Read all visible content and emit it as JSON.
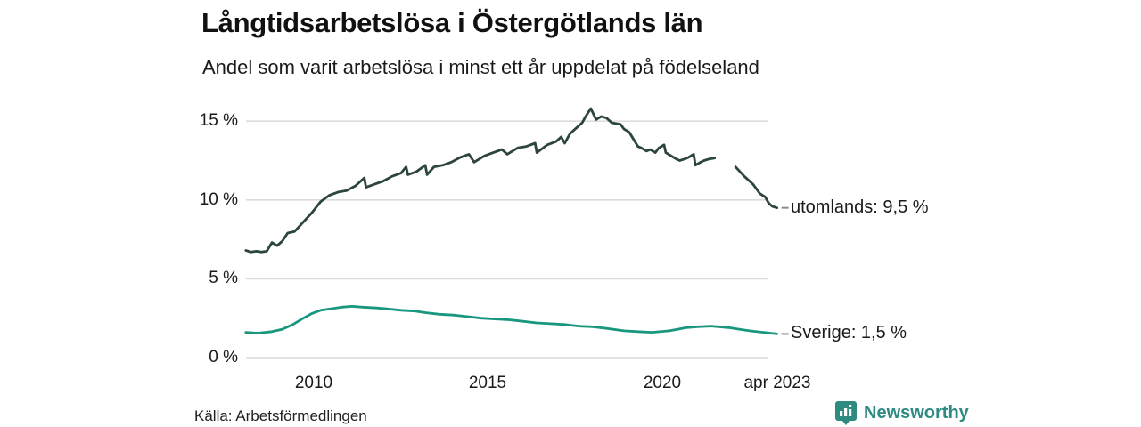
{
  "header": {
    "title": "Långtidsarbetslösa i Östergötlands län",
    "subtitle": "Andel som varit arbetslösa i minst ett år uppdelat på födelseland"
  },
  "footer": {
    "source": "Källa: Arbetsförmedlingen",
    "brand_name": "Newsworthy",
    "brand_icon": "bar-chart-speech-bubble-icon"
  },
  "colors": {
    "series_utomlands": "#2c453e",
    "series_sverige": "#19977e",
    "grid": "#dcdcdc",
    "label_dash": "#8a8a8a",
    "text": "#1a1a1a",
    "brand": "#2e8b81"
  },
  "chart_data": {
    "type": "line",
    "title": "Långtidsarbetslösa i Östergötlands län",
    "subtitle": "Andel som varit arbetslösa i minst ett år uppdelat på födelseland",
    "unit": "%",
    "grid": true,
    "legend_position": "end-of-line-labels",
    "ylim": [
      0,
      16.5
    ],
    "xlim": [
      2007.9,
      2023.45
    ],
    "y_ticks": [
      {
        "value": 0,
        "label": "0 %"
      },
      {
        "value": 5,
        "label": "5 %"
      },
      {
        "value": 10,
        "label": "10 %"
      },
      {
        "value": 15,
        "label": "15 %"
      }
    ],
    "x_ticks": [
      {
        "value": 2010,
        "label": "2010"
      },
      {
        "value": 2015,
        "label": "2015"
      },
      {
        "value": 2020,
        "label": "2020"
      },
      {
        "value": 2023.29,
        "label": "apr 2023"
      }
    ],
    "series": [
      {
        "name": "utomlands",
        "end_label": "utomlands: 9,5 %",
        "last_value": "9,5 %",
        "color": "#2c453e",
        "segments": [
          [
            [
              2008.05,
              6.8
            ],
            [
              2008.2,
              6.7
            ],
            [
              2008.35,
              6.75
            ],
            [
              2008.5,
              6.7
            ],
            [
              2008.65,
              6.75
            ],
            [
              2008.8,
              7.3
            ],
            [
              2008.95,
              7.1
            ],
            [
              2009.1,
              7.4
            ],
            [
              2009.25,
              7.9
            ],
            [
              2009.45,
              8.0
            ],
            [
              2009.7,
              8.6
            ],
            [
              2009.95,
              9.2
            ],
            [
              2010.2,
              9.9
            ],
            [
              2010.45,
              10.3
            ],
            [
              2010.7,
              10.5
            ],
            [
              2010.95,
              10.6
            ],
            [
              2011.2,
              10.9
            ],
            [
              2011.45,
              11.4
            ],
            [
              2011.5,
              10.8
            ],
            [
              2011.75,
              11.0
            ],
            [
              2012.0,
              11.2
            ],
            [
              2012.25,
              11.5
            ],
            [
              2012.5,
              11.7
            ],
            [
              2012.65,
              12.1
            ],
            [
              2012.7,
              11.6
            ],
            [
              2012.95,
              11.8
            ],
            [
              2013.2,
              12.2
            ],
            [
              2013.25,
              11.6
            ],
            [
              2013.45,
              12.1
            ],
            [
              2013.7,
              12.2
            ],
            [
              2013.95,
              12.4
            ],
            [
              2014.2,
              12.7
            ],
            [
              2014.45,
              12.9
            ],
            [
              2014.6,
              12.4
            ],
            [
              2014.9,
              12.8
            ],
            [
              2015.15,
              13.0
            ],
            [
              2015.4,
              13.2
            ],
            [
              2015.55,
              12.9
            ],
            [
              2015.85,
              13.3
            ],
            [
              2016.1,
              13.4
            ],
            [
              2016.35,
              13.6
            ],
            [
              2016.4,
              13.0
            ],
            [
              2016.7,
              13.5
            ],
            [
              2016.95,
              13.7
            ],
            [
              2017.1,
              14.0
            ],
            [
              2017.2,
              13.6
            ],
            [
              2017.35,
              14.2
            ],
            [
              2017.55,
              14.6
            ],
            [
              2017.7,
              14.9
            ],
            [
              2017.8,
              15.3
            ],
            [
              2017.95,
              15.8
            ],
            [
              2018.1,
              15.1
            ],
            [
              2018.25,
              15.3
            ],
            [
              2018.4,
              15.2
            ],
            [
              2018.55,
              14.9
            ],
            [
              2018.8,
              14.8
            ],
            [
              2018.9,
              14.5
            ],
            [
              2019.05,
              14.3
            ],
            [
              2019.3,
              13.4
            ],
            [
              2019.4,
              13.3
            ],
            [
              2019.55,
              13.1
            ],
            [
              2019.65,
              13.2
            ],
            [
              2019.8,
              13.0
            ],
            [
              2019.9,
              13.3
            ],
            [
              2020.05,
              13.5
            ],
            [
              2020.1,
              13.0
            ],
            [
              2020.25,
              12.8
            ],
            [
              2020.4,
              12.6
            ],
            [
              2020.5,
              12.5
            ],
            [
              2020.65,
              12.6
            ],
            [
              2020.75,
              12.7
            ],
            [
              2020.9,
              12.9
            ],
            [
              2020.95,
              12.2
            ],
            [
              2021.1,
              12.4
            ],
            [
              2021.2,
              12.5
            ],
            [
              2021.35,
              12.6
            ],
            [
              2021.5,
              12.65
            ]
          ],
          [
            [
              2022.1,
              12.1
            ],
            [
              2022.35,
              11.5
            ],
            [
              2022.6,
              11.0
            ],
            [
              2022.8,
              10.4
            ],
            [
              2022.95,
              10.2
            ],
            [
              2023.05,
              9.8
            ],
            [
              2023.15,
              9.6
            ],
            [
              2023.29,
              9.5
            ]
          ]
        ]
      },
      {
        "name": "Sverige",
        "end_label": "Sverige: 1,5 %",
        "last_value": "1,5 %",
        "color": "#19977e",
        "segments": [
          [
            [
              2008.05,
              1.6
            ],
            [
              2008.4,
              1.55
            ],
            [
              2008.8,
              1.65
            ],
            [
              2009.1,
              1.8
            ],
            [
              2009.4,
              2.1
            ],
            [
              2009.7,
              2.5
            ],
            [
              2009.95,
              2.8
            ],
            [
              2010.2,
              3.0
            ],
            [
              2010.5,
              3.1
            ],
            [
              2010.8,
              3.2
            ],
            [
              2011.1,
              3.25
            ],
            [
              2011.4,
              3.2
            ],
            [
              2011.8,
              3.15
            ],
            [
              2012.1,
              3.1
            ],
            [
              2012.5,
              3.0
            ],
            [
              2012.9,
              2.95
            ],
            [
              2013.2,
              2.85
            ],
            [
              2013.6,
              2.75
            ],
            [
              2014.0,
              2.7
            ],
            [
              2014.4,
              2.6
            ],
            [
              2014.8,
              2.5
            ],
            [
              2015.2,
              2.45
            ],
            [
              2015.6,
              2.4
            ],
            [
              2016.0,
              2.3
            ],
            [
              2016.4,
              2.2
            ],
            [
              2016.8,
              2.15
            ],
            [
              2017.2,
              2.1
            ],
            [
              2017.6,
              2.0
            ],
            [
              2018.0,
              1.95
            ],
            [
              2018.4,
              1.85
            ],
            [
              2018.9,
              1.7
            ],
            [
              2019.3,
              1.65
            ],
            [
              2019.7,
              1.6
            ],
            [
              2020.2,
              1.7
            ],
            [
              2020.7,
              1.9
            ],
            [
              2021.0,
              1.95
            ],
            [
              2021.4,
              2.0
            ],
            [
              2021.9,
              1.9
            ],
            [
              2022.2,
              1.8
            ],
            [
              2022.5,
              1.7
            ],
            [
              2022.9,
              1.6
            ],
            [
              2023.29,
              1.5
            ]
          ]
        ]
      }
    ]
  }
}
